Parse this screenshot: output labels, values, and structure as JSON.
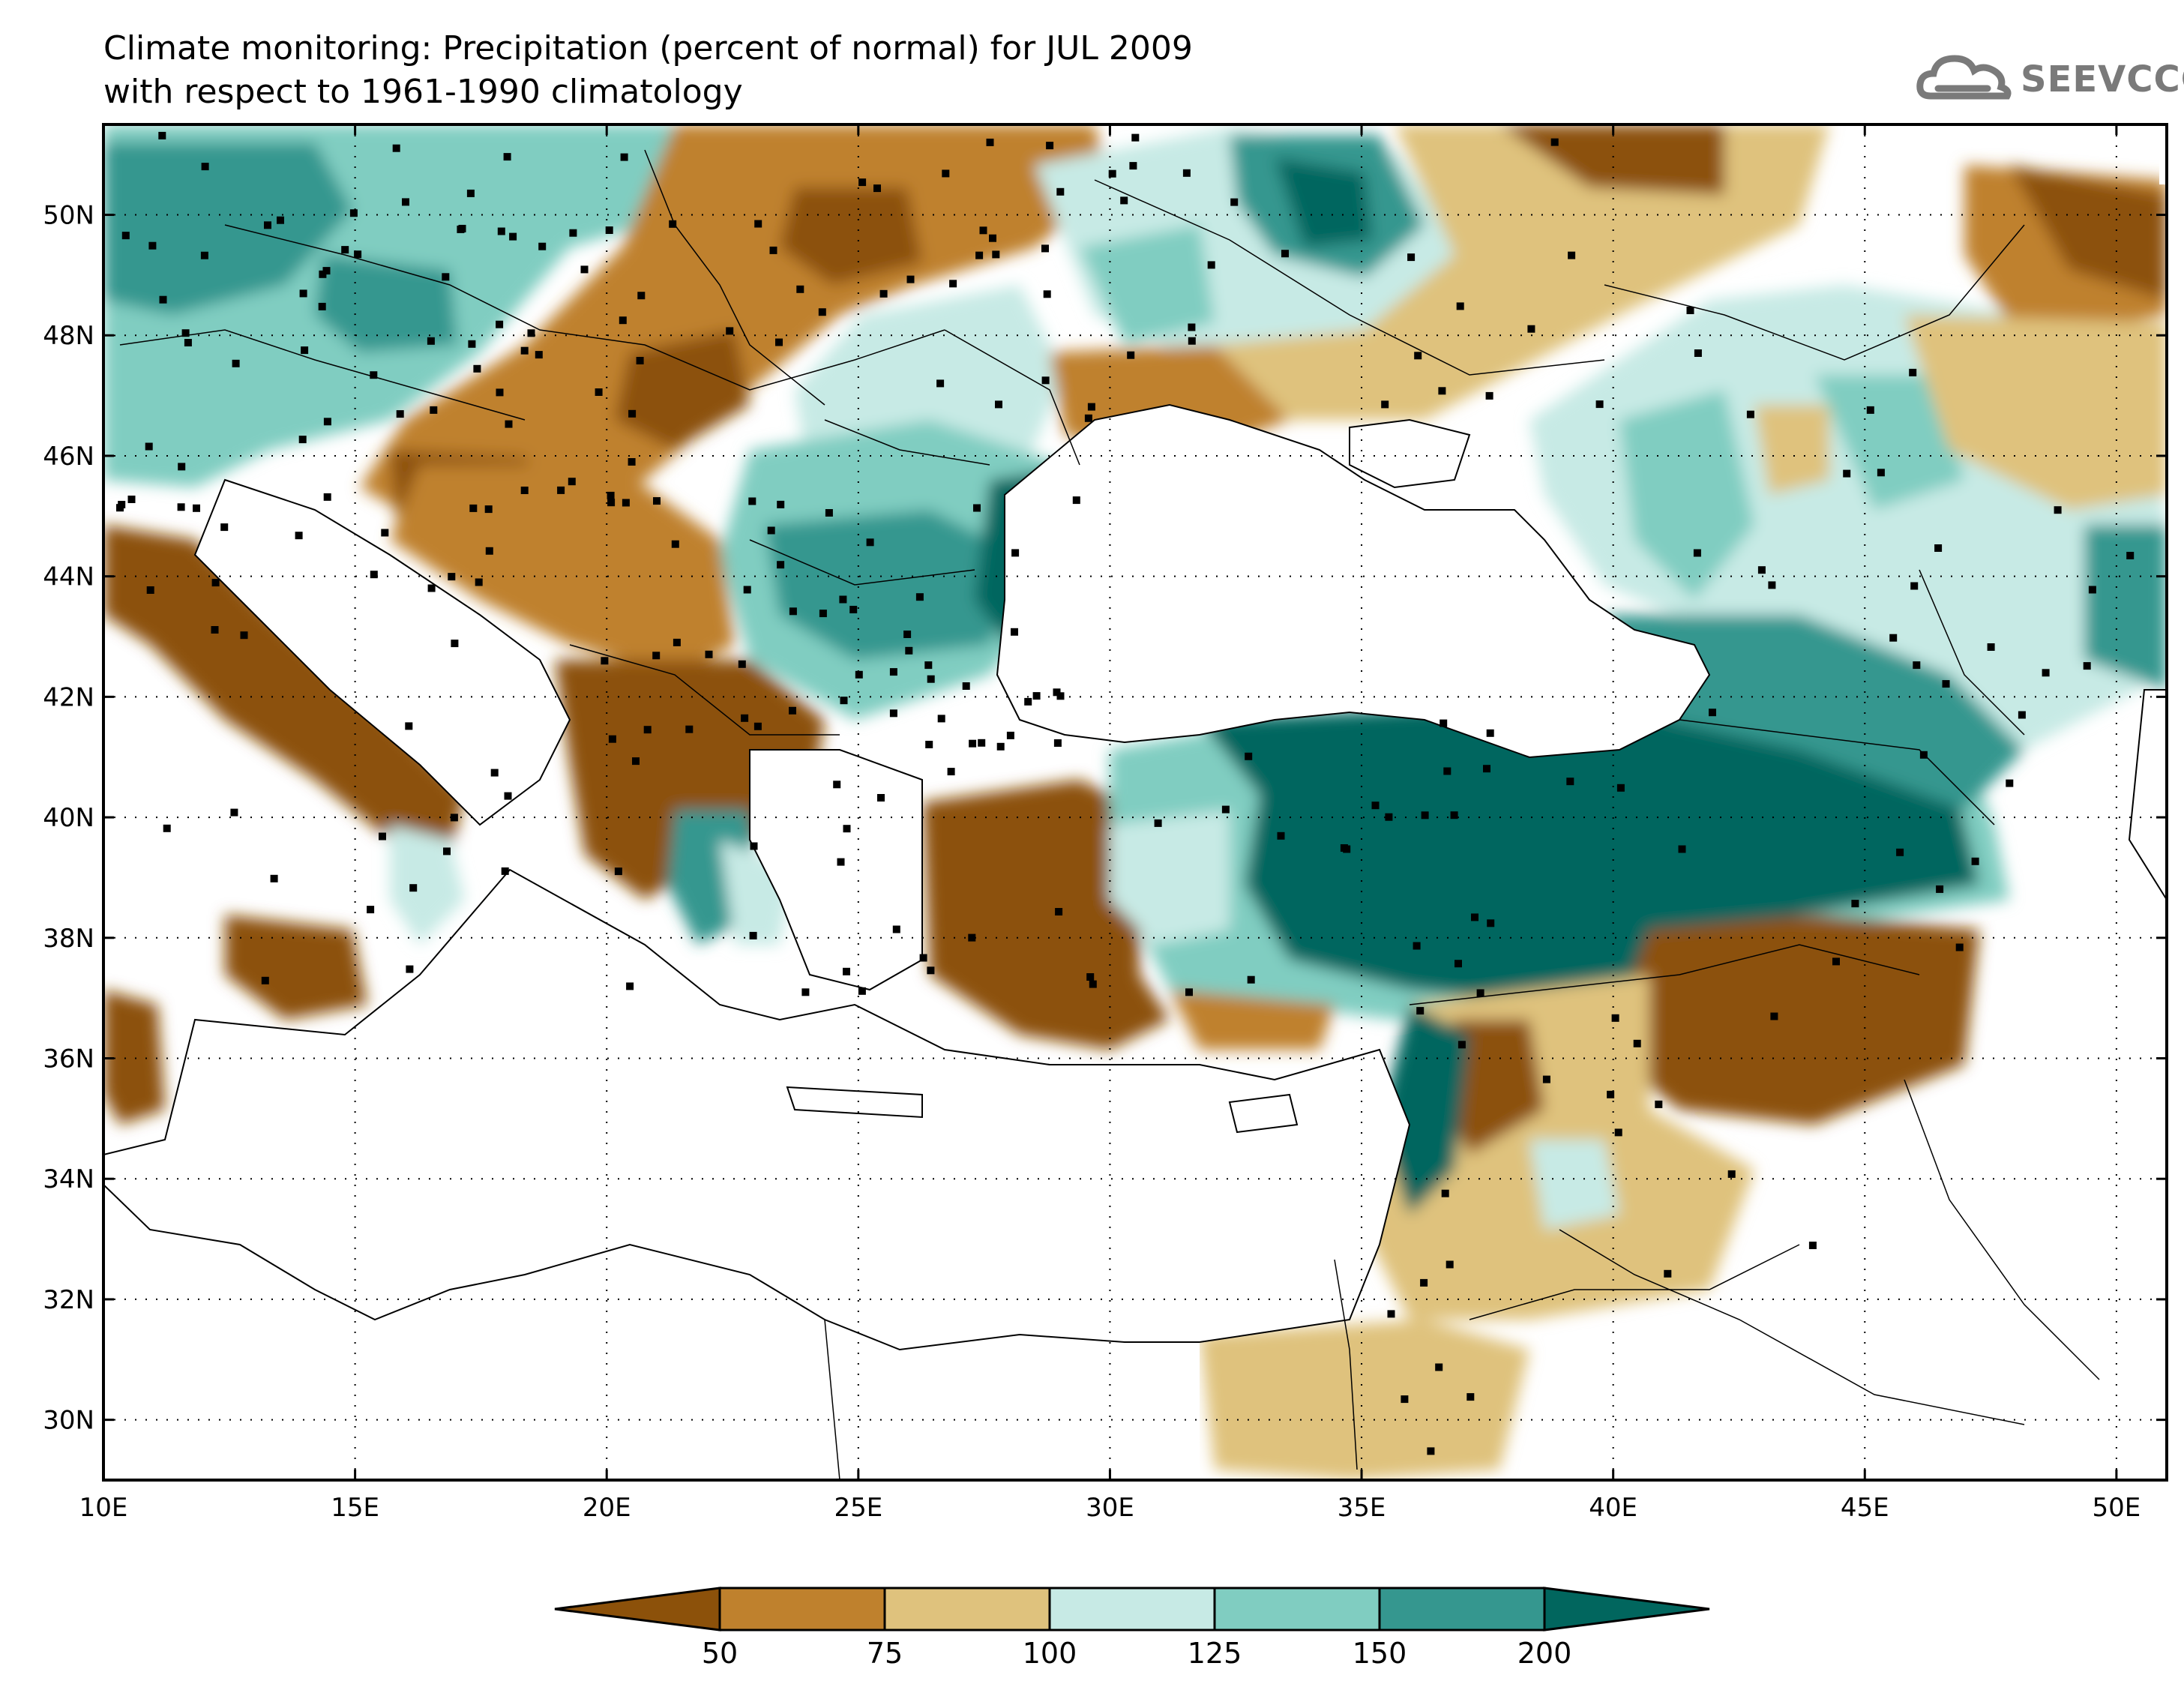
{
  "title": {
    "line1": "Climate monitoring: Precipitation (percent of normal) for JUL 2009",
    "line2": "with respect to 1961-1990 climatology"
  },
  "logo": {
    "text": "SEEVCCC",
    "icon": "cloud-icon",
    "color": "#7a7a7a"
  },
  "map": {
    "lon_range": [
      10,
      51
    ],
    "lat_range": [
      29,
      51.5
    ],
    "lon_ticks": [
      "10E",
      "15E",
      "20E",
      "25E",
      "30E",
      "35E",
      "40E",
      "45E",
      "50E"
    ],
    "lat_ticks": [
      "30N",
      "32N",
      "34N",
      "36N",
      "38N",
      "40N",
      "42N",
      "44N",
      "46N",
      "48N",
      "50N"
    ],
    "lon_tick_values": [
      10,
      15,
      20,
      25,
      30,
      35,
      40,
      45,
      50
    ],
    "lat_tick_values": [
      30,
      32,
      34,
      36,
      38,
      40,
      42,
      44,
      46,
      48,
      50
    ],
    "grid": "dotted"
  },
  "colorbar": {
    "labels": [
      "50",
      "75",
      "100",
      "125",
      "150",
      "200"
    ],
    "colors": [
      "#8c510a",
      "#bf812d",
      "#dfc27d",
      "#c7eae5",
      "#80cdc1",
      "#35978f",
      "#01665e"
    ]
  }
}
